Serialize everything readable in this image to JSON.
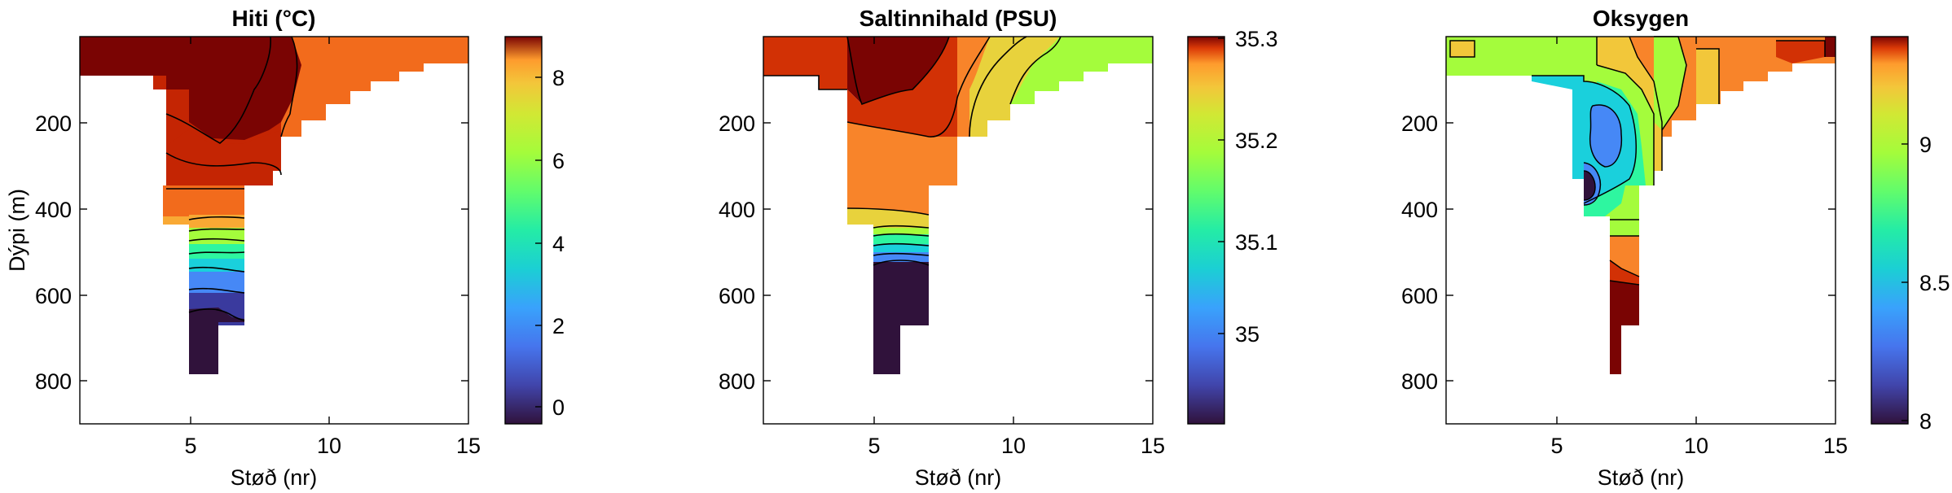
{
  "chart_data": [
    {
      "type": "heatmap",
      "title": "Hiti (°C)",
      "xlabel": "Støð (nr)",
      "ylabel": "Dýpi (m)",
      "xlim": [
        1,
        15
      ],
      "ylim": [
        900,
        0
      ],
      "x_ticks": [
        "5",
        "10",
        "15"
      ],
      "y_ticks": [
        "200",
        "400",
        "600",
        "800"
      ],
      "colorbar": {
        "ticks": [
          "8",
          "6",
          "4",
          "2",
          "0"
        ],
        "range": [
          -0.5,
          9
        ]
      },
      "bands": [
        {
          "value": 8.8,
          "color": "#7a0403"
        },
        {
          "value": 7.8,
          "color": "#c42503"
        },
        {
          "value": 7.0,
          "color": "#f26b1c"
        },
        {
          "value": 6.0,
          "color": "#f9a934"
        },
        {
          "value": 5.0,
          "color": "#e6c83a"
        },
        {
          "value": 4.0,
          "color": "#a4fc3c"
        },
        {
          "value": 3.2,
          "color": "#2ef6a0"
        },
        {
          "value": 2.0,
          "color": "#1ad0dc"
        },
        {
          "value": 1.0,
          "color": "#4688f6"
        },
        {
          "value": 0.2,
          "color": "#3a3a9e"
        },
        {
          "value": -0.3,
          "color": "#30123b"
        }
      ]
    },
    {
      "type": "heatmap",
      "title": "Saltinnihald (PSU)",
      "xlabel": "Støð (nr)",
      "ylabel": "",
      "xlim": [
        1,
        15
      ],
      "ylim": [
        900,
        0
      ],
      "x_ticks": [
        "5",
        "10",
        "15"
      ],
      "y_ticks": [
        "200",
        "400",
        "600",
        "800"
      ],
      "colorbar": {
        "ticks": [
          "35.3",
          "35.2",
          "35.1",
          "35"
        ],
        "range": [
          34.92,
          35.3
        ]
      },
      "bands": [
        {
          "value": 35.29,
          "color": "#7a0403"
        },
        {
          "value": 35.25,
          "color": "#d23105"
        },
        {
          "value": 35.2,
          "color": "#f8842a"
        },
        {
          "value": 35.15,
          "color": "#e8d23c"
        },
        {
          "value": 35.12,
          "color": "#a4fc3c"
        },
        {
          "value": 35.08,
          "color": "#2ef6a0"
        },
        {
          "value": 35.03,
          "color": "#1ad0dc"
        },
        {
          "value": 34.99,
          "color": "#4688f6"
        },
        {
          "value": 34.94,
          "color": "#30123b"
        }
      ]
    },
    {
      "type": "heatmap",
      "title": "Oksygen",
      "xlabel": "Støð (nr)",
      "ylabel": "",
      "xlim": [
        1,
        15
      ],
      "ylim": [
        900,
        0
      ],
      "x_ticks": [
        "5",
        "10",
        "15"
      ],
      "y_ticks": [
        "200",
        "400",
        "600",
        "800"
      ],
      "colorbar": {
        "ticks": [
          "9",
          "8.5",
          "8"
        ],
        "range": [
          7.95,
          9.35
        ]
      },
      "bands": [
        {
          "value": 9.3,
          "color": "#7a0403"
        },
        {
          "value": 9.1,
          "color": "#d23105"
        },
        {
          "value": 8.95,
          "color": "#f8842a"
        },
        {
          "value": 8.85,
          "color": "#f2c73a"
        },
        {
          "value": 8.75,
          "color": "#a4fc3c"
        },
        {
          "value": 8.62,
          "color": "#2ef6a0"
        },
        {
          "value": 8.5,
          "color": "#1ad0dc"
        },
        {
          "value": 8.35,
          "color": "#4688f6"
        },
        {
          "value": 8.1,
          "color": "#30123b"
        }
      ]
    }
  ]
}
